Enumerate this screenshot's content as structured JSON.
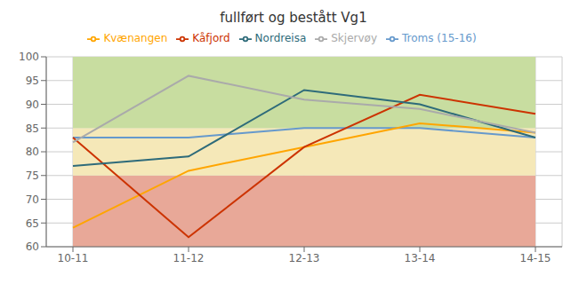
{
  "chart_data": {
    "type": "line",
    "title": "fullført og bestått Vg1",
    "categories": [
      "10-11",
      "11-12",
      "12-13",
      "13-14",
      "14-15"
    ],
    "series": [
      {
        "name": "Troms (15-16)",
        "color": "#6699CC",
        "values": [
          83,
          83,
          85,
          85,
          83
        ]
      },
      {
        "name": "Kvænangen",
        "color": "#FFA500",
        "values": [
          64,
          76,
          81,
          86,
          84
        ]
      },
      {
        "name": "Kåfjord",
        "color": "#CC3300",
        "values": [
          83,
          62,
          81,
          92,
          88
        ]
      },
      {
        "name": "Nordreisa",
        "color": "#2E6B7A",
        "values": [
          77,
          79,
          93,
          90,
          83
        ]
      },
      {
        "name": "Skjervøy",
        "color": "#AAAAAA",
        "values": [
          82,
          96,
          91,
          89,
          84
        ]
      }
    ],
    "ylim": [
      60,
      100
    ],
    "yticks": [
      60,
      65,
      70,
      75,
      80,
      85,
      90,
      95,
      100
    ],
    "bands": [
      {
        "ymin": 60,
        "ymax": 75,
        "color": "#E8A898"
      },
      {
        "ymin": 75,
        "ymax": 85,
        "color": "#F5E8B8"
      },
      {
        "ymin": 85,
        "ymax": 100,
        "color": "#C8DDA0"
      }
    ],
    "grid": true,
    "legend": "top"
  }
}
